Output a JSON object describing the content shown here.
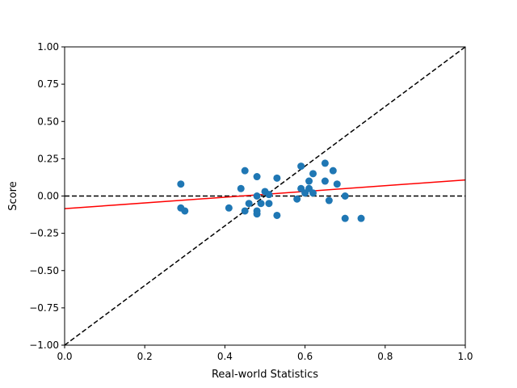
{
  "chart_data": {
    "type": "scatter",
    "title": "",
    "xlabel": "Real-world Statistics",
    "ylabel": "Score",
    "xlim": [
      0.0,
      1.0
    ],
    "ylim": [
      -1.0,
      1.0
    ],
    "xticks": [
      0.0,
      0.2,
      0.4,
      0.6,
      0.8,
      1.0
    ],
    "yticks": [
      -1.0,
      -0.75,
      -0.5,
      -0.25,
      0.0,
      0.25,
      0.5,
      0.75,
      1.0
    ],
    "xtick_labels": [
      "0.0",
      "0.2",
      "0.4",
      "0.6",
      "0.8",
      "1.0"
    ],
    "ytick_labels": [
      "−1.00",
      "−0.75",
      "−0.50",
      "−0.25",
      "0.00",
      "0.25",
      "0.50",
      "0.75",
      "1.00"
    ],
    "grid": false,
    "legend": "none",
    "colors": {
      "points": "#1f77b4",
      "fit_line": "#ff0000",
      "reference_lines": "#000000"
    },
    "series": [
      {
        "points": [
          [
            0.29,
            0.08
          ],
          [
            0.29,
            -0.08
          ],
          [
            0.3,
            -0.1
          ],
          [
            0.41,
            -0.08
          ],
          [
            0.44,
            0.05
          ],
          [
            0.45,
            0.17
          ],
          [
            0.45,
            -0.1
          ],
          [
            0.46,
            -0.05
          ],
          [
            0.48,
            0.13
          ],
          [
            0.48,
            0.0
          ],
          [
            0.48,
            -0.1
          ],
          [
            0.48,
            -0.12
          ],
          [
            0.49,
            -0.05
          ],
          [
            0.5,
            0.03
          ],
          [
            0.51,
            0.01
          ],
          [
            0.51,
            -0.05
          ],
          [
            0.53,
            0.12
          ],
          [
            0.53,
            -0.13
          ],
          [
            0.58,
            -0.02
          ],
          [
            0.59,
            0.2
          ],
          [
            0.59,
            0.05
          ],
          [
            0.6,
            0.02
          ],
          [
            0.61,
            0.1
          ],
          [
            0.61,
            0.05
          ],
          [
            0.62,
            0.15
          ],
          [
            0.62,
            0.02
          ],
          [
            0.65,
            0.22
          ],
          [
            0.65,
            0.1
          ],
          [
            0.66,
            -0.03
          ],
          [
            0.67,
            0.17
          ],
          [
            0.68,
            0.08
          ],
          [
            0.7,
            0.0
          ],
          [
            0.7,
            -0.15
          ],
          [
            0.74,
            -0.15
          ]
        ]
      }
    ],
    "fit_line": {
      "style": "solid",
      "x": [
        0.0,
        1.0
      ],
      "y": [
        -0.085,
        0.108
      ]
    },
    "reference_lines": [
      {
        "style": "dashed",
        "x": [
          0.0,
          1.0
        ],
        "y": [
          0.0,
          0.0
        ]
      },
      {
        "style": "dashed",
        "x": [
          0.0,
          1.0
        ],
        "y": [
          -1.0,
          1.0
        ]
      }
    ]
  }
}
